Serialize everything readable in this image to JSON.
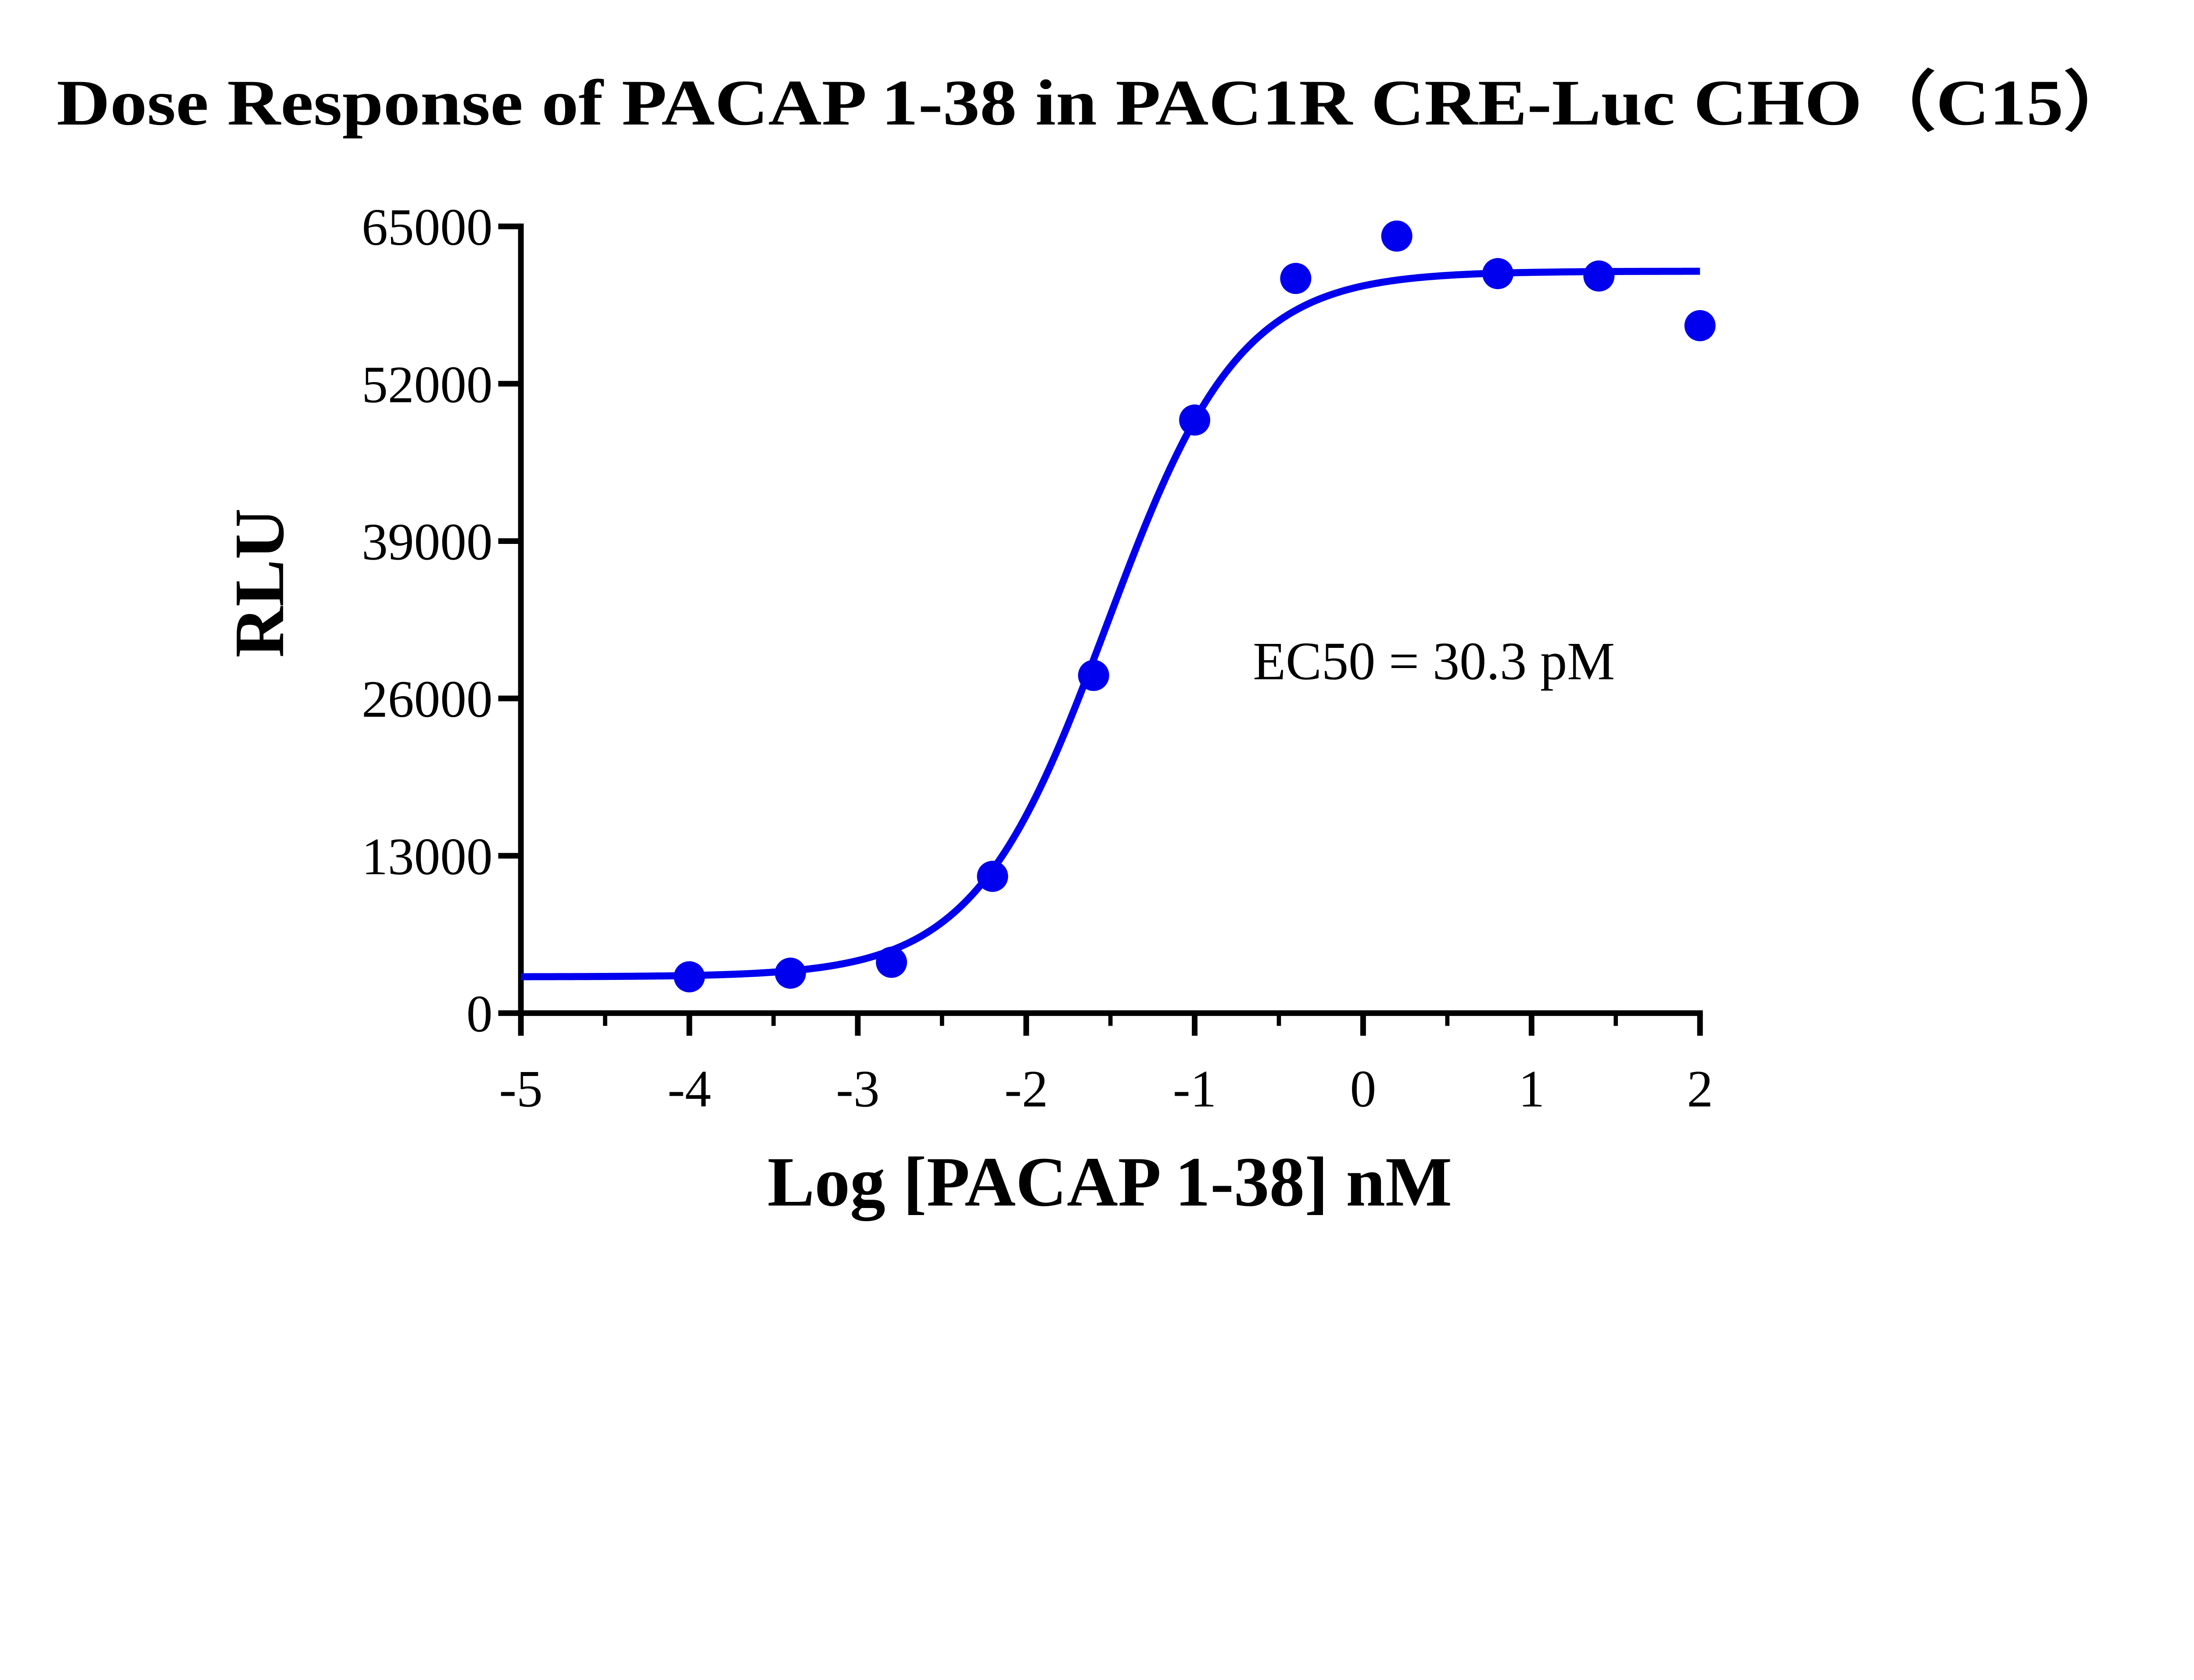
{
  "chart_data": {
    "type": "scatter",
    "title": "Dose Response of PACAP 1-38 in PAC1R CRE-Luc CHO（C15）",
    "xlabel": "Log [PACAP 1-38] nM",
    "ylabel": "RLU",
    "xlim": [
      -5,
      2
    ],
    "ylim": [
      0,
      65000
    ],
    "xticks": [
      "-5",
      "-4",
      "-3",
      "-2",
      "-1",
      "0",
      "1",
      "2"
    ],
    "yticks": [
      "0",
      "13000",
      "26000",
      "39000",
      "52000",
      "65000"
    ],
    "grid": false,
    "color": "#0000ee",
    "series": [
      {
        "x": [
          -4.0,
          -3.4,
          -2.8,
          -2.2,
          -1.6,
          -1.0,
          -0.4,
          0.2,
          0.8,
          1.4,
          2.0
        ],
        "y": [
          3000,
          3300,
          4200,
          11300,
          27900,
          49000,
          60700,
          64200,
          61100,
          60900,
          56800
        ]
      }
    ],
    "fit": {
      "model": "4PL",
      "bottom": 3000,
      "top": 61300,
      "logEC50": -1.52,
      "hill": 1.1
    },
    "annotations": [
      "EC50 = 30.3 pM"
    ]
  }
}
